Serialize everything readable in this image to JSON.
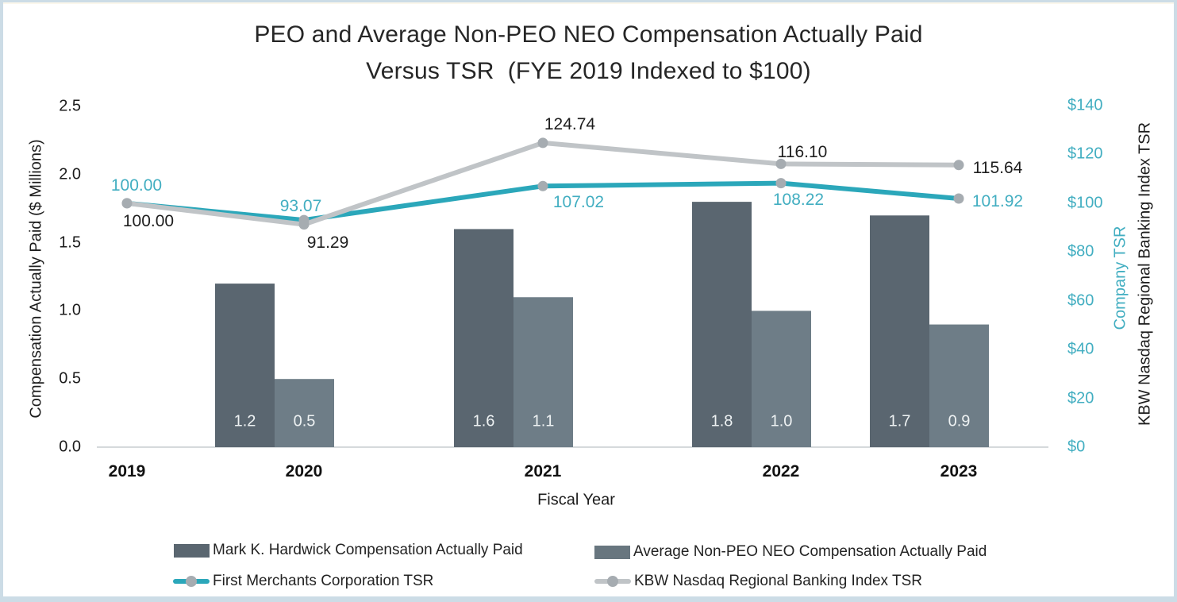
{
  "title": {
    "line1": "PEO and Average Non-PEO NEO Compensation Actually Paid",
    "line2": "Versus TSR  (FYE 2019 Indexed to $100)"
  },
  "axes": {
    "left": {
      "title": "Compensation Actually Paid ($ Millions)",
      "tick_labels": [
        "0.0",
        "0.5",
        "1.0",
        "1.5",
        "2.0",
        "2.5"
      ],
      "range": [
        0,
        2.5
      ]
    },
    "right": {
      "title_company": "Company TSR",
      "title_index": "KBW Nasdaq Regional Banking Index TSR",
      "tick_labels": [
        "$0",
        "$20",
        "$40",
        "$60",
        "$80",
        "$100",
        "$120",
        "$140"
      ],
      "range": [
        0,
        140
      ]
    },
    "x": {
      "title": "Fiscal Year",
      "categories": [
        "2019",
        "2020",
        "2021",
        "2022",
        "2023"
      ]
    }
  },
  "chart_data": {
    "type": "combo-bar-line",
    "categories": [
      "2019",
      "2020",
      "2021",
      "2022",
      "2023"
    ],
    "series": [
      {
        "name": "Mark K. Hardwick Compensation Actually Paid",
        "type": "bar",
        "axis": "left",
        "values": [
          null,
          1.2,
          1.6,
          1.8,
          1.7
        ],
        "labels": [
          "",
          "1.2",
          "1.6",
          "1.8",
          "1.7"
        ],
        "color": "#5a6670"
      },
      {
        "name": "Average Non-PEO NEO Compensation Actually Paid",
        "type": "bar",
        "axis": "left",
        "values": [
          null,
          0.5,
          1.1,
          1.0,
          0.9
        ],
        "labels": [
          "",
          "0.5",
          "1.1",
          "1.0",
          "0.9"
        ],
        "color": "#6e7d87"
      },
      {
        "name": "First Merchants Corporation TSR",
        "type": "line",
        "axis": "right",
        "values": [
          100.0,
          93.07,
          107.02,
          108.22,
          101.92
        ],
        "labels": [
          "100.00",
          "93.07",
          "107.02",
          "108.22",
          "101.92"
        ],
        "color": "#2ba7ba"
      },
      {
        "name": "KBW Nasdaq Regional Banking Index TSR",
        "type": "line",
        "axis": "right",
        "values": [
          100.0,
          91.29,
          124.74,
          116.1,
          115.64
        ],
        "labels": [
          "100.00",
          "91.29",
          "124.74",
          "116.10",
          "115.64"
        ],
        "color": "#c0c4c7"
      }
    ],
    "marker_color": "#a6acb1",
    "axis_line_color": "#d6dadc",
    "left_axis_range": [
      0,
      2.5
    ],
    "right_axis_range": [
      0,
      140
    ],
    "grid": false,
    "legend_position": "bottom"
  },
  "legend": {
    "items": [
      {
        "label": "Mark K. Hardwick Compensation Actually Paid",
        "type": "bar",
        "color": "#5a6670"
      },
      {
        "label": "Average Non-PEO NEO Compensation Actually Paid",
        "type": "bar",
        "color": "#68767f"
      },
      {
        "label": "First Merchants Corporation TSR",
        "type": "line",
        "color": "#2ba7ba"
      },
      {
        "label": "KBW Nasdaq Regional Banking Index TSR",
        "type": "line",
        "color": "#c0c4c7"
      }
    ]
  }
}
